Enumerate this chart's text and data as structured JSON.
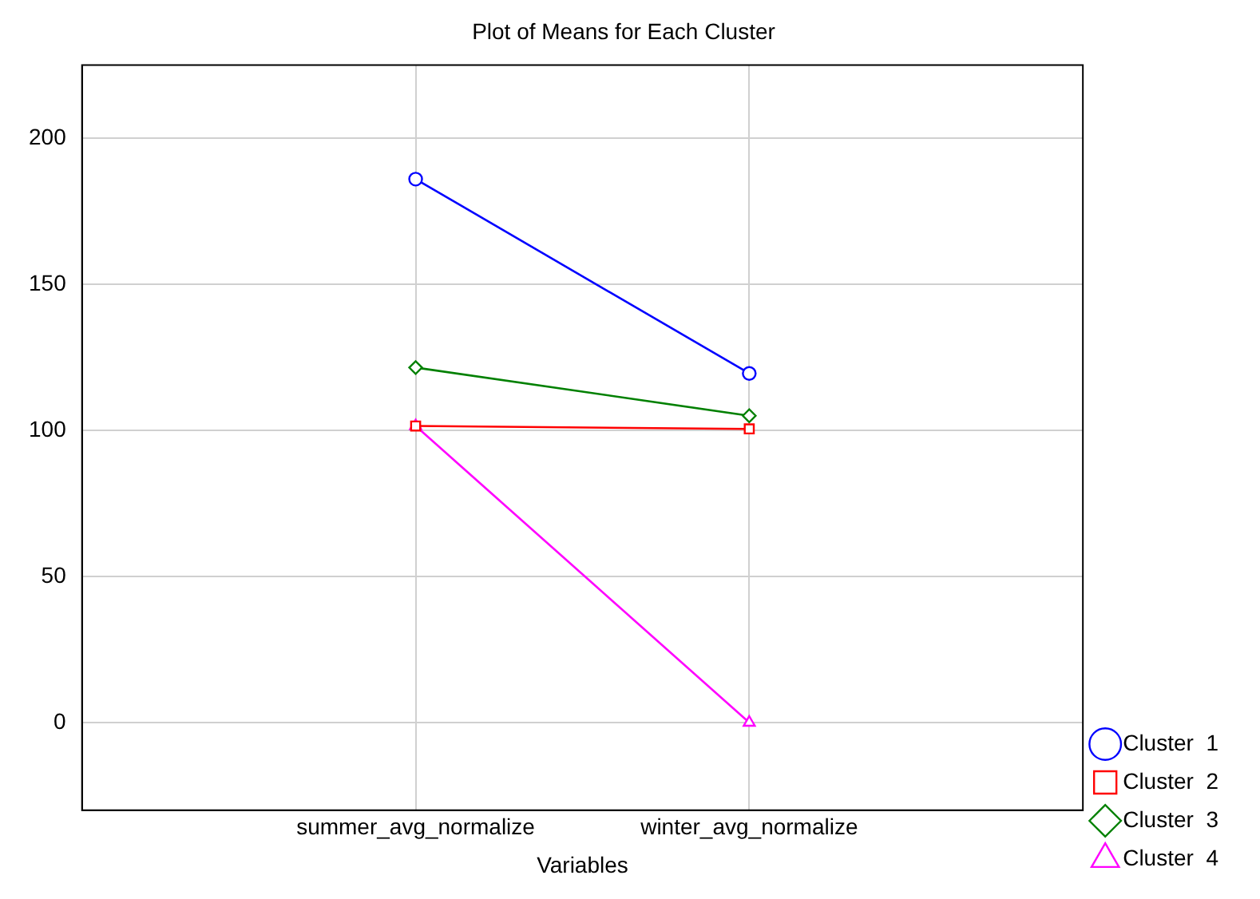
{
  "chart_data": {
    "type": "line",
    "title": "Plot of Means for Each Cluster",
    "xlabel": "Variables",
    "categories": [
      "summer_avg_normalize",
      "winter_avg_normalize"
    ],
    "series": [
      {
        "name": "Cluster  1",
        "color": "#0000ff",
        "marker": "circle",
        "values": [
          186,
          119.5
        ]
      },
      {
        "name": "Cluster  2",
        "color": "#ff0000",
        "marker": "square",
        "values": [
          101.5,
          100.5
        ]
      },
      {
        "name": "Cluster  3",
        "color": "#008000",
        "marker": "diamond",
        "values": [
          121.5,
          105
        ]
      },
      {
        "name": "Cluster  4",
        "color": "#ff00ff",
        "marker": "triangle",
        "values": [
          101.5,
          0
        ]
      }
    ],
    "ylim": [
      -30,
      225
    ],
    "yticks": [
      0,
      50,
      100,
      150,
      200
    ],
    "grid": true,
    "legend": "bottom right",
    "line_style": "solid"
  }
}
